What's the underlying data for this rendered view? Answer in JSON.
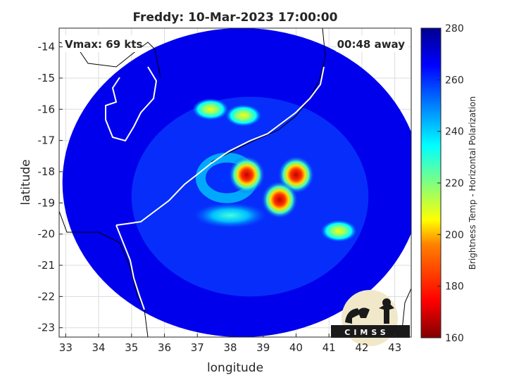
{
  "chart_data": {
    "type": "heatmap",
    "title": "Freddy: 10-Mar-2023 17:00:00",
    "annotations": {
      "vmax": "Vmax: 69 kts",
      "away": "00:48 away"
    },
    "xlabel": "longitude",
    "ylabel": "latitude",
    "xlim": [
      32.8,
      43.5
    ],
    "ylim": [
      -23.3,
      -13.4
    ],
    "xticks": [
      33,
      34,
      35,
      36,
      37,
      38,
      39,
      40,
      41,
      42,
      43
    ],
    "yticks": [
      -14,
      -15,
      -16,
      -17,
      -18,
      -19,
      -20,
      -21,
      -22,
      -23
    ],
    "grid": true,
    "colorbar": {
      "label": "Brightness Temp - Horizontal Polarization",
      "range": [
        160,
        280
      ],
      "ticks": [
        160,
        180,
        200,
        220,
        240,
        260,
        280
      ],
      "colormap": [
        "#800000",
        "#ff0000",
        "#ff8000",
        "#ffff00",
        "#80ff80",
        "#00ffff",
        "#0080ff",
        "#0000ff",
        "#00008f"
      ]
    },
    "swath": {
      "center": [
        38.35,
        -18.35
      ],
      "radius_lon": 5.45,
      "radius_lat": 4.95,
      "background_temp": 268
    },
    "features": [
      {
        "lon": 38.5,
        "lat": -18.1,
        "temp": 185
      },
      {
        "lon": 40.0,
        "lat": -18.1,
        "temp": 190
      },
      {
        "lon": 39.5,
        "lat": -18.9,
        "temp": 180
      },
      {
        "lon": 38.4,
        "lat": -16.2,
        "temp": 215
      },
      {
        "lon": 37.4,
        "lat": -16.0,
        "temp": 222
      },
      {
        "lon": 41.3,
        "lat": -19.9,
        "temp": 218
      },
      {
        "lon": 38.0,
        "lat": -19.4,
        "temp": 240
      }
    ],
    "logo_text": "CIMSS"
  }
}
